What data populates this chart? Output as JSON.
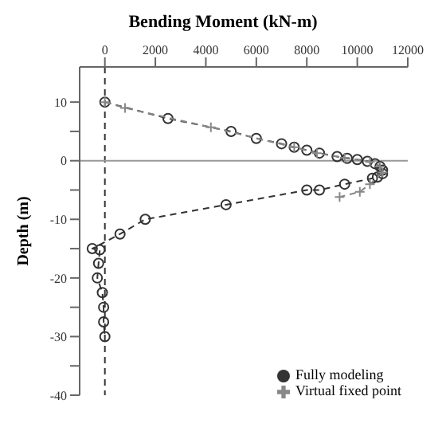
{
  "chart_data": {
    "type": "line",
    "title": "Bending Moment (kN-m)",
    "ylabel": "Depth (m)",
    "xlim": [
      -1000,
      12000
    ],
    "xticks": [
      0,
      2000,
      4000,
      6000,
      8000,
      10000,
      12000
    ],
    "ylim": [
      -40,
      16
    ],
    "yticks": [
      {
        "value": -40,
        "label": "-40"
      },
      {
        "value": -35,
        "label": null
      },
      {
        "value": -30,
        "label": "-30"
      },
      {
        "value": -25,
        "label": null
      },
      {
        "value": -20,
        "label": "-20"
      },
      {
        "value": -15,
        "label": null
      },
      {
        "value": -10,
        "label": "-10"
      },
      {
        "value": -5,
        "label": null
      },
      {
        "value": 0,
        "label": "0"
      },
      {
        "value": 5,
        "label": null
      },
      {
        "value": 10,
        "label": "10"
      }
    ],
    "series": [
      {
        "name": "Fully modeling",
        "color": "#333333",
        "marker": "circle",
        "line_style": "dashed",
        "x": [
          0,
          2500,
          5000,
          6000,
          7000,
          7500,
          8000,
          8500,
          9200,
          9600,
          10000,
          10400,
          10700,
          10900,
          11000,
          11000,
          10800,
          10600,
          9500,
          8500,
          8000,
          4800,
          1600,
          600,
          -500,
          -200,
          -250,
          -300,
          -100,
          -50,
          -50,
          0
        ],
        "values": [
          10,
          7.2,
          5,
          3.8,
          2.9,
          2.3,
          1.8,
          1.3,
          0.7,
          0.4,
          0.2,
          -0.1,
          -0.5,
          -1,
          -1.6,
          -2.2,
          -2.8,
          -3,
          -4,
          -5,
          -5,
          -7.5,
          -10,
          -12.5,
          -15,
          -15.2,
          -17.5,
          -20,
          -22.5,
          -25,
          -27.5,
          -30
        ]
      },
      {
        "name": "Virtual fixed point",
        "color": "#888888",
        "marker": "cross",
        "line_style": "dashed",
        "x": [
          0,
          800,
          4200,
          7500,
          8400,
          9500,
          10500,
          10900,
          11000,
          10500,
          10100,
          9300
        ],
        "values": [
          10,
          9,
          5.7,
          2.3,
          1.3,
          0.5,
          -0.2,
          -1,
          -2,
          -4,
          -5.3,
          -6.2
        ]
      }
    ],
    "ref_lines": [
      {
        "axis": "x",
        "value": 0,
        "line_style": "dashed",
        "color": "#333333"
      },
      {
        "axis": "y",
        "value": 0,
        "line_style": "solid",
        "color": "#999999"
      }
    ],
    "legend": "bottom right",
    "grid": false
  }
}
